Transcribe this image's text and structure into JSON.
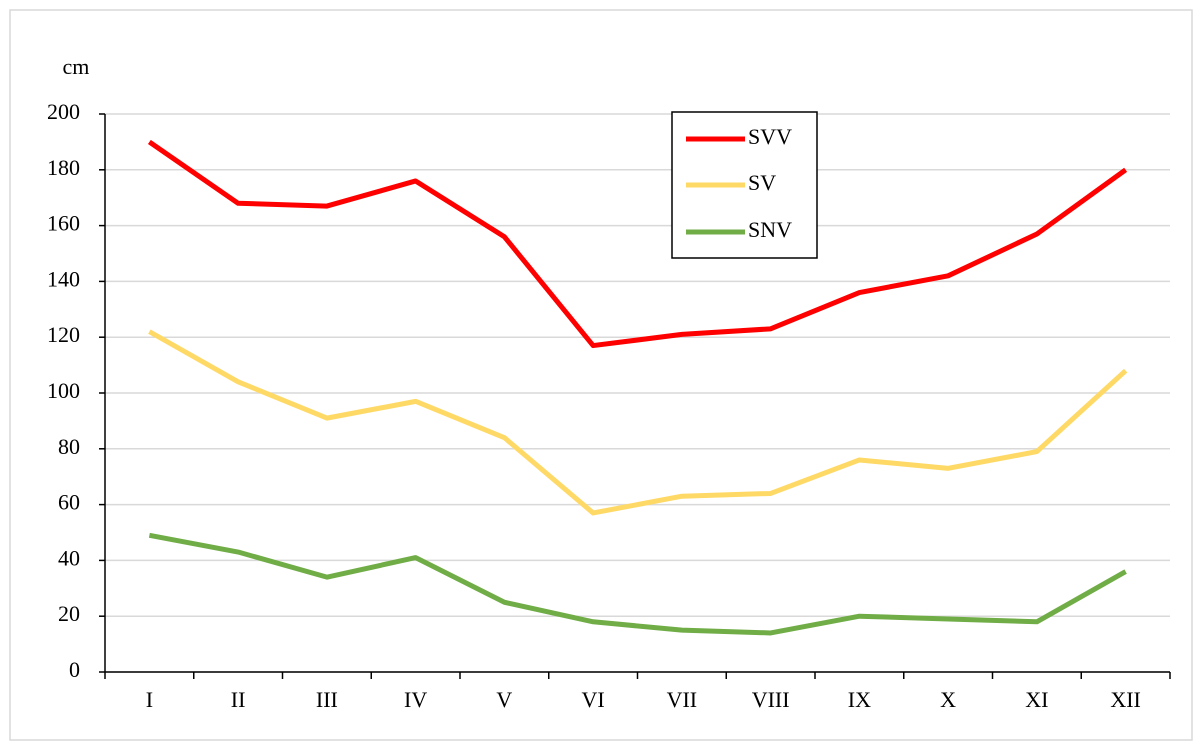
{
  "chart_data": {
    "type": "line",
    "y_label": "cm",
    "categories": [
      "I",
      "II",
      "III",
      "IV",
      "V",
      "VI",
      "VII",
      "VIII",
      "IX",
      "X",
      "XI",
      "XII"
    ],
    "series": [
      {
        "name": "SVV",
        "color": "#ff0000",
        "values": [
          190,
          168,
          167,
          176,
          156,
          117,
          121,
          123,
          136,
          142,
          157,
          180
        ]
      },
      {
        "name": "SV",
        "color": "#ffd966",
        "values": [
          122,
          104,
          91,
          97,
          84,
          57,
          63,
          64,
          76,
          73,
          79,
          108
        ]
      },
      {
        "name": "SNV",
        "color": "#70ad47",
        "values": [
          49,
          43,
          34,
          41,
          25,
          18,
          15,
          14,
          20,
          19,
          18,
          36
        ]
      }
    ],
    "ylim": [
      0,
      200
    ],
    "yticks": [
      0,
      20,
      40,
      60,
      80,
      100,
      120,
      140,
      160,
      180,
      200
    ],
    "grid": true
  }
}
